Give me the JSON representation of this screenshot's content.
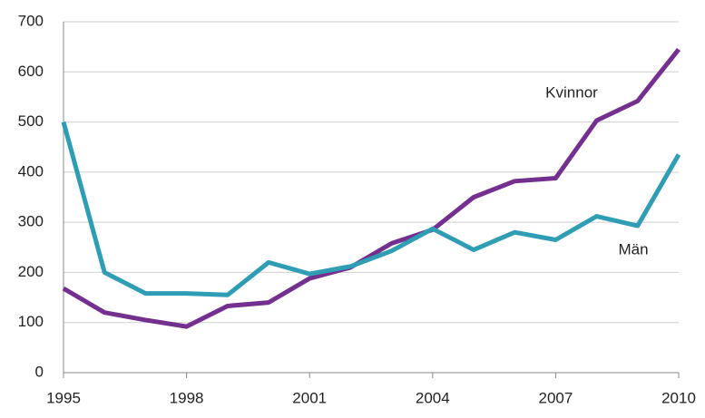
{
  "chart_data": {
    "type": "line",
    "x": [
      1995,
      1996,
      1997,
      1998,
      1999,
      2000,
      2001,
      2002,
      2003,
      2004,
      2005,
      2006,
      2007,
      2008,
      2009,
      2010
    ],
    "series": [
      {
        "name": "Kvinnor",
        "color": "#74308f",
        "values": [
          168,
          120,
          105,
          92,
          133,
          140,
          188,
          210,
          258,
          285,
          350,
          382,
          388,
          503,
          542,
          645
        ]
      },
      {
        "name": "Män",
        "color": "#2f9db3",
        "values": [
          500,
          200,
          158,
          158,
          155,
          220,
          197,
          212,
          243,
          287,
          245,
          280,
          265,
          312,
          293,
          435
        ]
      }
    ],
    "xlim": [
      1995,
      2010
    ],
    "xticks": [
      1995,
      1998,
      2001,
      2004,
      2007,
      2010
    ],
    "ylim": [
      0,
      700
    ],
    "yticks": [
      0,
      100,
      200,
      300,
      400,
      500,
      600,
      700
    ],
    "grid": true
  }
}
